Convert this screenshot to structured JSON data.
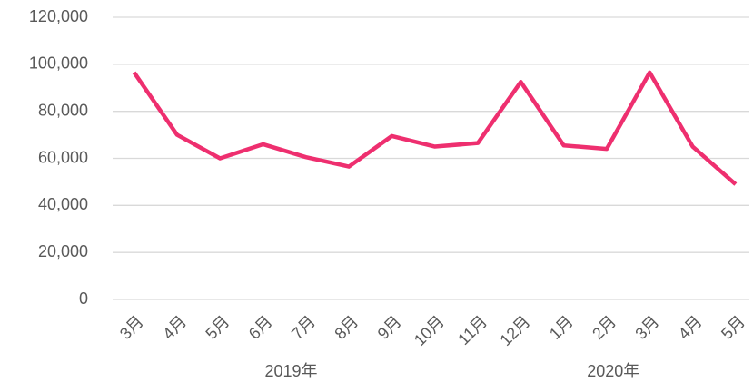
{
  "chart_data": {
    "type": "line",
    "groups": [
      {
        "label": "2019年",
        "categories": [
          "3月",
          "4月",
          "5月",
          "6月",
          "7月",
          "8月",
          "9月",
          "10月",
          "11月",
          "12月"
        ]
      },
      {
        "label": "2020年",
        "categories": [
          "1月",
          "2月",
          "3月",
          "4月",
          "5月"
        ]
      }
    ],
    "series": [
      {
        "color": "#ee2f6f",
        "values": [
          96500,
          70000,
          60000,
          66000,
          60500,
          56500,
          69500,
          65000,
          66500,
          92500,
          65500,
          64000,
          96500,
          65000,
          49000
        ]
      }
    ],
    "ylim": [
      0,
      120000
    ],
    "yticks": [
      0,
      {
        "value": 20000,
        "label": "20,000"
      },
      {
        "value": 40000,
        "label": "40,000"
      },
      {
        "value": 60000,
        "label": "60,000"
      },
      {
        "value": 80000,
        "label": "80,000"
      },
      {
        "value": 100000,
        "label": "100,000"
      },
      {
        "value": 120000,
        "label": "120,000"
      }
    ],
    "grid": true
  }
}
